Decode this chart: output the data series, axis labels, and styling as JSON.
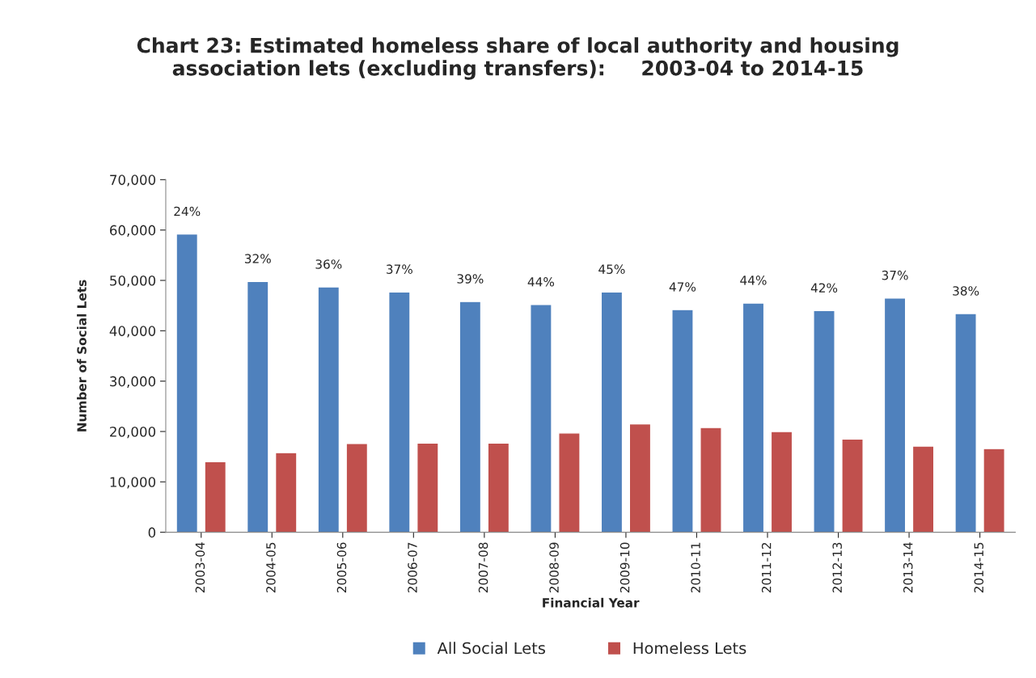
{
  "chart_data": {
    "type": "bar",
    "title": "Chart 23: Estimated homeless share of local authority and housing\nassociation lets (excluding transfers):     2003-04 to 2014-15",
    "xlabel": "Financial Year",
    "ylabel": "Number of Social Lets",
    "categories": [
      "2003-04",
      "2004-05",
      "2005-06",
      "2006-07",
      "2007-08",
      "2008-09",
      "2009-10",
      "2010-11",
      "2011-12",
      "2012-13",
      "2013-14",
      "2014-15"
    ],
    "series": [
      {
        "name": "All Social Lets",
        "color": "#4f81bd",
        "values": [
          59200,
          49800,
          48700,
          47700,
          45800,
          45200,
          47700,
          44200,
          45500,
          44000,
          46500,
          43400
        ]
      },
      {
        "name": "Homeless Lets",
        "color": "#c0504d",
        "values": [
          14000,
          15800,
          17600,
          17700,
          17700,
          19700,
          21500,
          20800,
          20000,
          18500,
          17100,
          16600
        ]
      }
    ],
    "ylim": [
      0,
      70000
    ],
    "yticks": [
      0,
      {
        "value": 10000,
        "label": "10,000"
      },
      {
        "value": 20000,
        "label": "20,000"
      },
      {
        "value": 30000,
        "label": "30,000"
      },
      {
        "value": 40000,
        "label": "40,000"
      },
      {
        "value": 50000,
        "label": "50,000"
      },
      {
        "value": 60000,
        "label": "60,000"
      },
      {
        "value": 70000,
        "label": "70,000"
      }
    ],
    "annotations": [
      {
        "text": "24%",
        "x": "2003-04",
        "y": 59200
      },
      {
        "text": "32%",
        "x": "2004-05",
        "y": 49800
      },
      {
        "text": "36%",
        "x": "2005-06",
        "y": 48700
      },
      {
        "text": "37%",
        "x": "2006-07",
        "y": 47700
      },
      {
        "text": "39%",
        "x": "2007-08",
        "y": 45800
      },
      {
        "text": "44%",
        "x": "2008-09",
        "y": 45200
      },
      {
        "text": "45%",
        "x": "2009-10",
        "y": 47700
      },
      {
        "text": "47%",
        "x": "2010-11",
        "y": 44200
      },
      {
        "text": "44%",
        "x": "2011-12",
        "y": 45500
      },
      {
        "text": "42%",
        "x": "2012-13",
        "y": 44000
      },
      {
        "text": "37%",
        "x": "2013-14",
        "y": 46500
      },
      {
        "text": "38%",
        "x": "2014-15",
        "y": 43400
      }
    ],
    "grid": false,
    "legend": "bottom"
  }
}
